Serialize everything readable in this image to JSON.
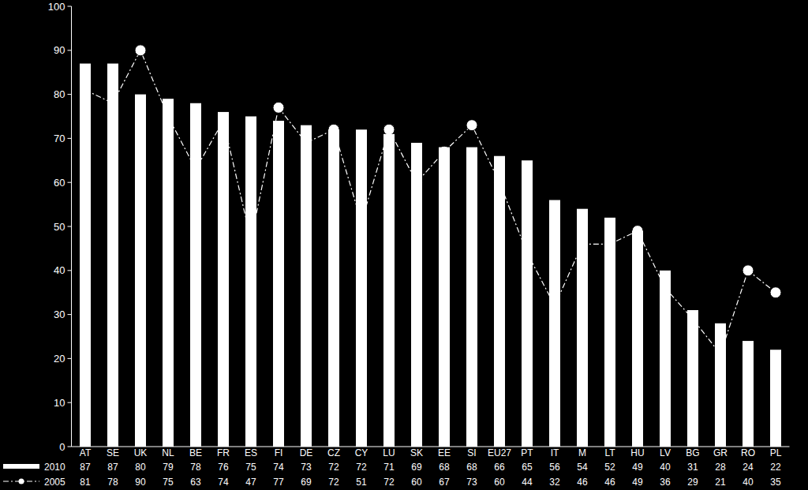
{
  "chart_data": {
    "type": "bar",
    "categories": [
      "AT",
      "SE",
      "UK",
      "NL",
      "BE",
      "FR",
      "ES",
      "FI",
      "DE",
      "CZ",
      "CY",
      "LU",
      "SK",
      "EE",
      "SI",
      "EU27",
      "PT",
      "IT",
      "M",
      "LT",
      "HU",
      "LV",
      "BG",
      "GR",
      "RO",
      "PL"
    ],
    "series": [
      {
        "name": "2010",
        "type": "bar",
        "color": "#ffffff",
        "values": [
          87,
          87,
          80,
          79,
          78,
          76,
          75,
          74,
          73,
          72,
          72,
          71,
          69,
          68,
          68,
          66,
          65,
          56,
          54,
          52,
          49,
          40,
          31,
          28,
          24,
          22
        ]
      },
      {
        "name": "2005",
        "type": "line",
        "color": "#ffffff",
        "marker": "circle",
        "line_style": "dashdot",
        "values": [
          81,
          78,
          90,
          75,
          63,
          74,
          47,
          77,
          69,
          72,
          51,
          72,
          60,
          67,
          73,
          60,
          44,
          32,
          46,
          46,
          49,
          36,
          29,
          21,
          40,
          35
        ]
      }
    ],
    "ylim": [
      0,
      100
    ],
    "yticks": [
      0,
      10,
      20,
      30,
      40,
      50,
      60,
      70,
      80,
      90,
      100
    ],
    "grid": false,
    "legend": "bottom-left",
    "data_labels": true
  }
}
